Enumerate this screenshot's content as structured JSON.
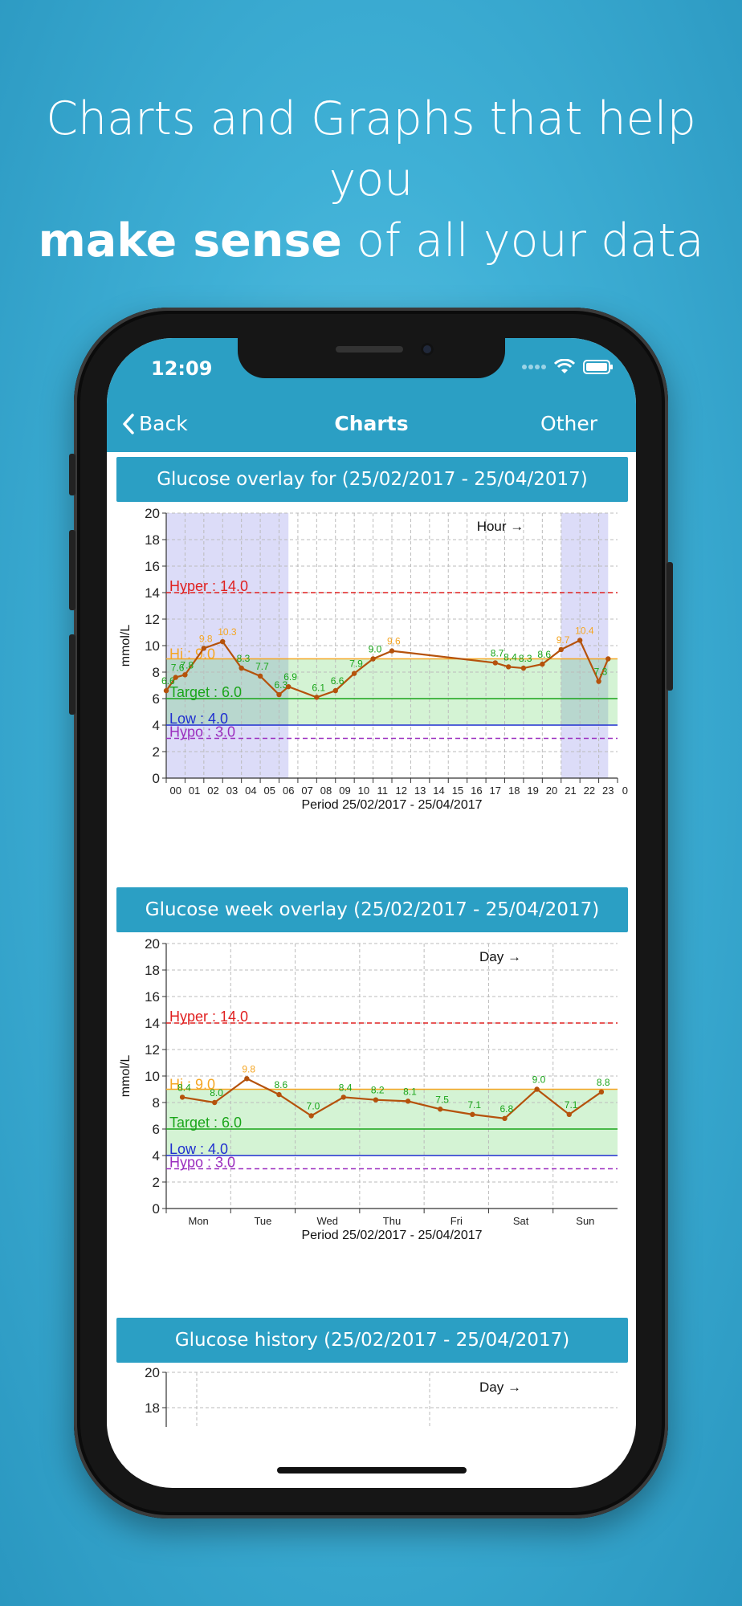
{
  "headline": {
    "line1": "Charts and Graphs that help you",
    "bold": "make sense",
    "rest": " of all your data"
  },
  "status_bar": {
    "time": "12:09",
    "icons": [
      "signal-dots-icon",
      "wifi-icon",
      "battery-icon"
    ]
  },
  "nav": {
    "back_label": "Back",
    "title": "Charts",
    "right_label": "Other"
  },
  "colors": {
    "accent": "#2b9fc4",
    "hyper": "#e02020",
    "hi": "#f5a623",
    "target": "#1aa51a",
    "low": "#1f2fd0",
    "hypo": "#9b2fbf",
    "avg_line": "#b5520c"
  },
  "sections": [
    {
      "title": "Glucose overlay for (25/02/2017 - 25/04/2017)"
    },
    {
      "title": "Glucose week overlay (25/02/2017 - 25/04/2017)"
    },
    {
      "title": "Glucose history (25/02/2017 - 25/04/2017)"
    }
  ],
  "chart_data": [
    {
      "type": "line",
      "title": "",
      "annotation": "Hour →",
      "ylabel": "mmol/L",
      "xlabel": "Period 25/02/2017 - 25/04/2017",
      "ylim": [
        0,
        20
      ],
      "yticks": [
        0,
        2,
        4,
        6,
        8,
        10,
        12,
        14,
        16,
        18,
        20
      ],
      "categories": [
        "00",
        "01",
        "02",
        "03",
        "04",
        "05",
        "06",
        "07",
        "08",
        "09",
        "10",
        "11",
        "12",
        "13",
        "14",
        "15",
        "16",
        "17",
        "18",
        "19",
        "20",
        "21",
        "22",
        "23",
        "0"
      ],
      "thresholds": [
        {
          "label": "Hyper : 14.0",
          "value": 14.0,
          "style": "dashed",
          "kind": "hyper"
        },
        {
          "label": "Hi : 9.0",
          "value": 9.0,
          "style": "solid",
          "kind": "hi"
        },
        {
          "label": "Target : 6.0",
          "value": 6.0,
          "style": "solid",
          "kind": "target"
        },
        {
          "label": "Low : 4.0",
          "value": 4.0,
          "style": "solid",
          "kind": "low"
        },
        {
          "label": "Hypo : 3.0",
          "value": 3.0,
          "style": "dashed",
          "kind": "hypo"
        }
      ],
      "night_bands": [
        [
          0,
          6.5
        ],
        [
          21,
          23.5
        ]
      ],
      "series": [
        {
          "x": [
            0,
            0.5,
            1,
            2,
            3,
            4,
            5,
            6,
            6.5,
            8,
            9,
            10,
            11,
            12,
            17.5,
            18.2,
            19,
            20,
            21,
            22,
            23,
            23.5
          ],
          "values": [
            6.6,
            7.6,
            7.8,
            9.8,
            10.3,
            8.3,
            7.7,
            6.3,
            6.9,
            6.1,
            6.6,
            7.9,
            9.0,
            9.6,
            8.7,
            8.4,
            8.3,
            8.6,
            9.7,
            10.4,
            7.3,
            9.0
          ],
          "labels": [
            "6.6",
            "7.6",
            "7.8",
            "9.8",
            "10.3",
            "8.3",
            "7.7",
            "6.3",
            "6.9",
            "6.1",
            "6.6",
            "7.9",
            "9.0",
            "9.6",
            "8.7",
            "8.4",
            "8.3",
            "8.6",
            "9.7",
            "10.4",
            "7.3",
            ""
          ]
        }
      ]
    },
    {
      "type": "line",
      "title": "",
      "annotation": "Day →",
      "ylabel": "mmol/L",
      "xlabel": "Period 25/02/2017 - 25/04/2017",
      "ylim": [
        0,
        20
      ],
      "yticks": [
        0,
        2,
        4,
        6,
        8,
        10,
        12,
        14,
        16,
        18,
        20
      ],
      "categories": [
        "Mon",
        "Tue",
        "Wed",
        "Thu",
        "Fri",
        "Sat",
        "Sun"
      ],
      "thresholds": [
        {
          "label": "Hyper : 14.0",
          "value": 14.0,
          "style": "dashed",
          "kind": "hyper"
        },
        {
          "label": "Hi : 9.0",
          "value": 9.0,
          "style": "solid",
          "kind": "hi"
        },
        {
          "label": "Target : 6.0",
          "value": 6.0,
          "style": "solid",
          "kind": "target"
        },
        {
          "label": "Low : 4.0",
          "value": 4.0,
          "style": "solid",
          "kind": "low"
        },
        {
          "label": "Hypo : 3.0",
          "value": 3.0,
          "style": "dashed",
          "kind": "hypo"
        }
      ],
      "series": [
        {
          "x": [
            0.25,
            0.75,
            1.25,
            1.75,
            2.25,
            2.75,
            3.25,
            3.75,
            4.25,
            4.75,
            5.25,
            5.75,
            6.25,
            6.75
          ],
          "values": [
            8.4,
            8.0,
            9.8,
            8.6,
            7.0,
            8.4,
            8.2,
            8.1,
            7.5,
            7.1,
            6.8,
            9.0,
            7.1,
            8.8
          ],
          "labels": [
            "8.4",
            "8.0",
            "9.8",
            "8.6",
            "7.0",
            "8.4",
            "8.2",
            "8.1",
            "7.5",
            "7.1",
            "6.8",
            "9.0",
            "7.1",
            "8.8"
          ]
        }
      ]
    },
    {
      "type": "line",
      "title": "",
      "annotation": "Day →",
      "ylim": [
        0,
        20
      ],
      "yticks": [
        18,
        20
      ]
    }
  ]
}
